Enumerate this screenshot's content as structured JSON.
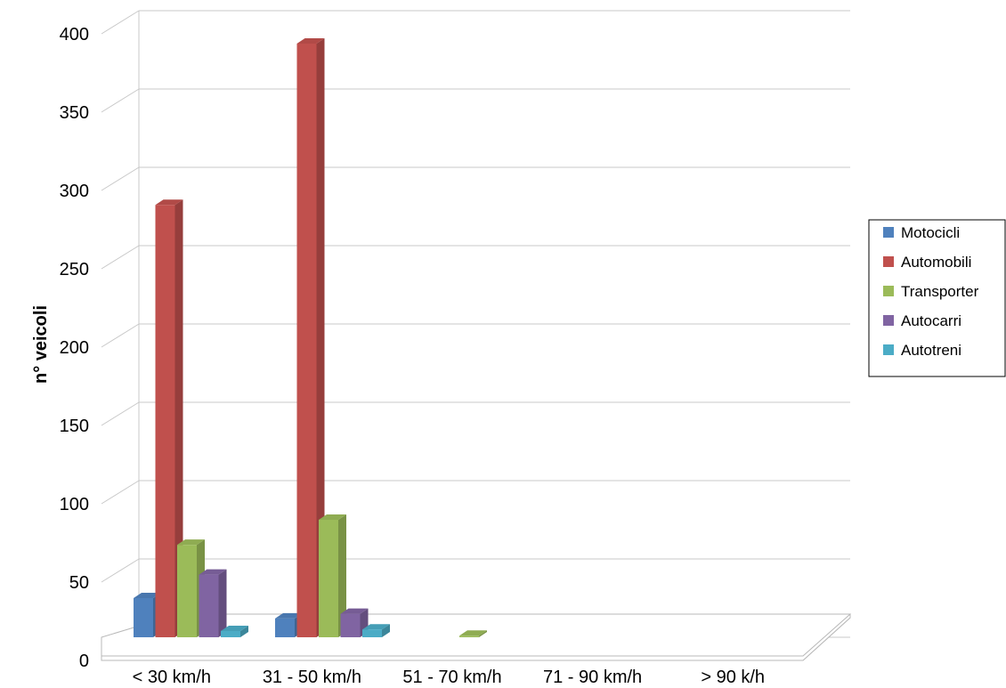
{
  "chart_data": {
    "type": "bar",
    "style": "3d-clustered-column",
    "categories": [
      "< 30 km/h",
      "31 - 50 km/h",
      "51 - 70 km/h",
      "71 - 90 km/h",
      "> 90 k/h"
    ],
    "series": [
      {
        "name": "Motocicli",
        "color": "#4f81bd",
        "values": [
          25,
          12,
          0,
          0,
          0
        ]
      },
      {
        "name": "Automobili",
        "color": "#c0504d",
        "values": [
          276,
          379,
          0,
          0,
          0
        ]
      },
      {
        "name": "Transporter",
        "color": "#9bbb59",
        "values": [
          59,
          75,
          1,
          0,
          0
        ]
      },
      {
        "name": "Autocarri",
        "color": "#8064a2",
        "values": [
          40,
          15,
          0,
          0,
          0
        ]
      },
      {
        "name": "Autotreni",
        "color": "#4bacc6",
        "values": [
          4,
          5,
          0,
          0,
          0
        ]
      }
    ],
    "xlabel": "",
    "ylabel": "n° veicoli",
    "ylim": [
      0,
      400
    ],
    "yticks": [
      "0",
      "50",
      "100",
      "150",
      "200",
      "250",
      "300",
      "350",
      "400"
    ],
    "grid": true,
    "legend_position": "right"
  }
}
